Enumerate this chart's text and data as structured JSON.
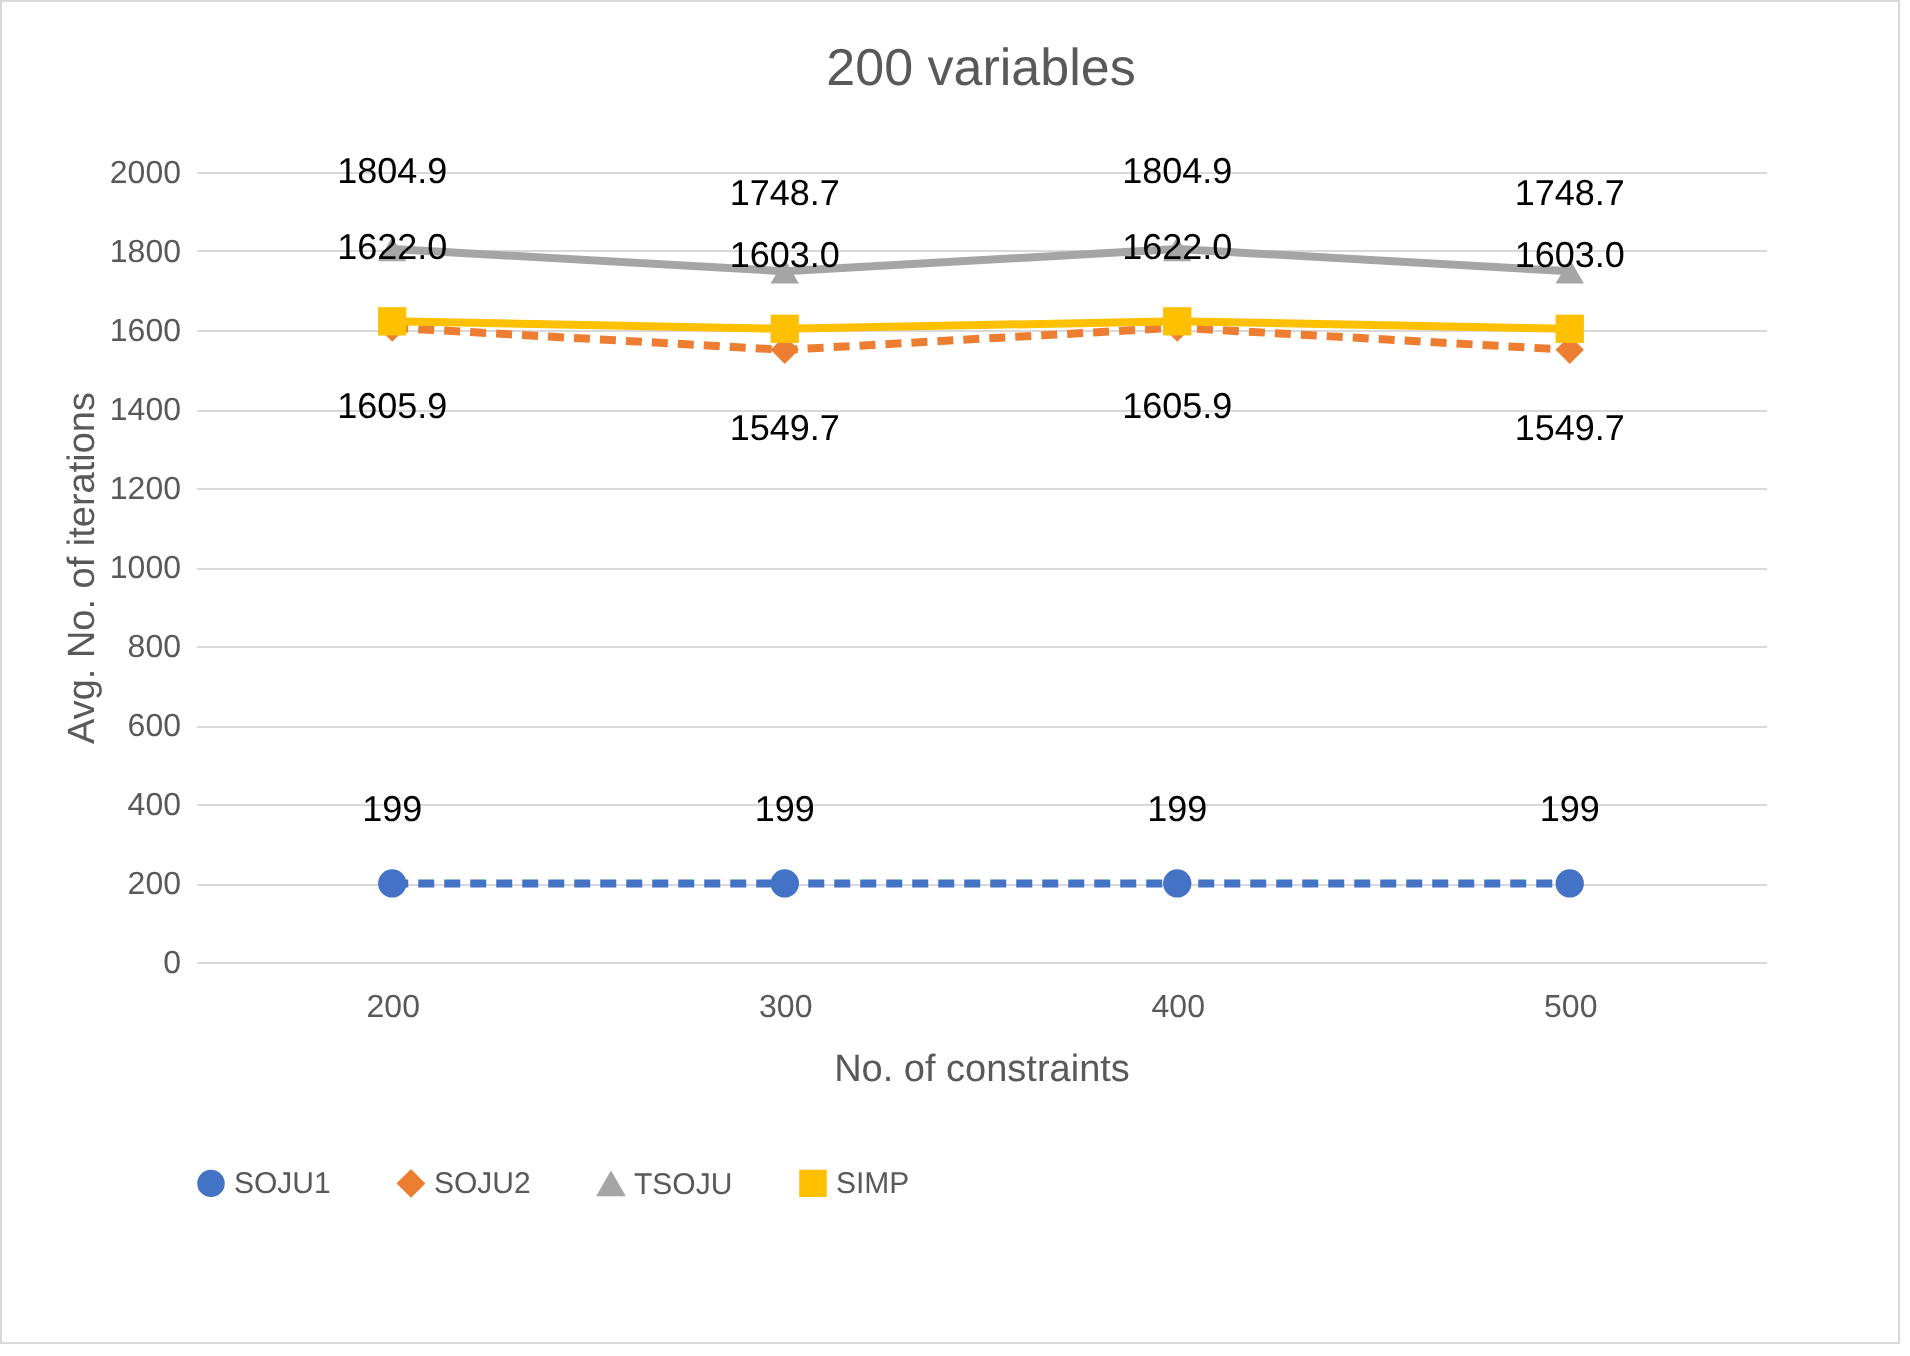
{
  "chart_data": {
    "type": "line",
    "title": "200 variables",
    "xlabel": "No. of constraints",
    "ylabel": "Avg. No. of iterations",
    "categories": [
      "200",
      "300",
      "400",
      "500"
    ],
    "series": [
      {
        "name": "SOJU1",
        "color": "#4472c4",
        "marker": "circle",
        "line_style": "dashed",
        "values": [
          199,
          199,
          199,
          199
        ],
        "value_labels": [
          "199",
          "199",
          "199",
          "199"
        ]
      },
      {
        "name": "SOJU2",
        "color": "#ed7d31",
        "marker": "diamond",
        "line_style": "dashed",
        "values": [
          1605.9,
          1549.7,
          1605.9,
          1549.7
        ],
        "value_labels": [
          "1605.9",
          "1549.7",
          "1605.9",
          "1549.7"
        ]
      },
      {
        "name": "TSOJU",
        "color": "#a5a5a5",
        "marker": "triangle",
        "line_style": "solid",
        "values": [
          1804.9,
          1748.7,
          1804.9,
          1748.7
        ],
        "value_labels": [
          "1804.9",
          "1748.7",
          "1804.9",
          "1748.7"
        ]
      },
      {
        "name": "SIMP",
        "color": "#ffc000",
        "marker": "square",
        "line_style": "solid",
        "values": [
          1622.0,
          1603.0,
          1622.0,
          1603.0
        ],
        "value_labels": [
          "1622.0",
          "1603.0",
          "1622.0",
          "1603.0"
        ]
      }
    ],
    "ylim": [
      0,
      2000
    ],
    "yticks": [
      0,
      200,
      400,
      600,
      800,
      1000,
      1200,
      1400,
      1600,
      1800,
      2000
    ],
    "grid": "y",
    "legend": "bottom"
  }
}
